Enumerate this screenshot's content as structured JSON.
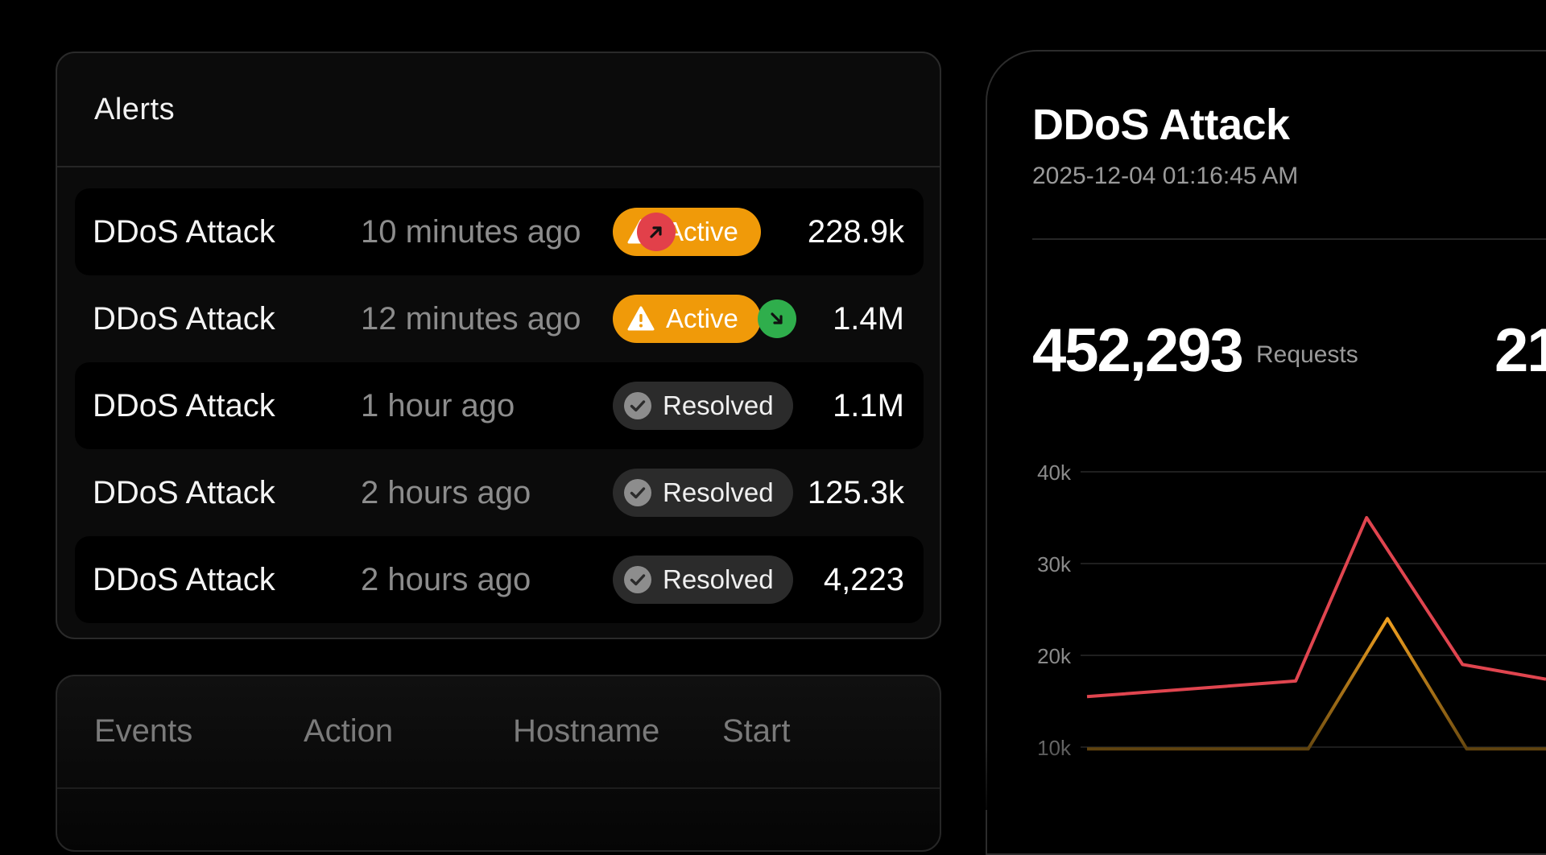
{
  "alerts": {
    "title": "Alerts",
    "rows": [
      {
        "name": "DDoS Attack",
        "time": "10 minutes ago",
        "status": "Active",
        "status_icon": "warning-icon",
        "trend": "up",
        "trend_icon": "arrow-up-right-icon",
        "value": "228.9k"
      },
      {
        "name": "DDoS Attack",
        "time": "12 minutes ago",
        "status": "Active",
        "status_icon": "warning-icon",
        "trend": "down",
        "trend_icon": "arrow-down-right-icon",
        "value": "1.4M"
      },
      {
        "name": "DDoS Attack",
        "time": "1 hour ago",
        "status": "Resolved",
        "status_icon": "check-circle-icon",
        "trend": "",
        "value": "1.1M"
      },
      {
        "name": "DDoS Attack",
        "time": "2 hours ago",
        "status": "Resolved",
        "status_icon": "check-circle-icon",
        "trend": "",
        "value": "125.3k"
      },
      {
        "name": "DDoS Attack",
        "time": "2 hours ago",
        "status": "Resolved",
        "status_icon": "check-circle-icon",
        "trend": "",
        "value": "4,223"
      }
    ]
  },
  "events": {
    "columns": [
      "Events",
      "Action",
      "Hostname",
      "Start"
    ]
  },
  "detail": {
    "title": "DDoS Attack",
    "timestamp": "2025-12-04 01:16:45 AM",
    "metric_value": "452,293",
    "metric_label": "Requests",
    "metric2_value_partial": "21"
  },
  "colors": {
    "active": "#f09a09",
    "trend_up": "#e2404a",
    "trend_down": "#2fae4c",
    "series_red": "#e0454f",
    "series_orange": "#f0a020"
  },
  "chart_data": {
    "type": "line",
    "y_ticks": [
      "40k",
      "30k",
      "20k",
      "10k"
    ],
    "ylim": [
      10000,
      40000
    ],
    "grid": true,
    "x_index_range": [
      0,
      11
    ],
    "series": [
      {
        "color": "#e0454f",
        "points": [
          [
            0,
            15500
          ],
          [
            5,
            17200
          ],
          [
            6.7,
            35000
          ],
          [
            9,
            19000
          ],
          [
            11,
            17400
          ]
        ]
      },
      {
        "color": "#f0a020",
        "points": [
          [
            0,
            9800
          ],
          [
            5.3,
            9800
          ],
          [
            7.2,
            24000
          ],
          [
            9.1,
            9800
          ],
          [
            11,
            9800
          ]
        ]
      }
    ]
  }
}
